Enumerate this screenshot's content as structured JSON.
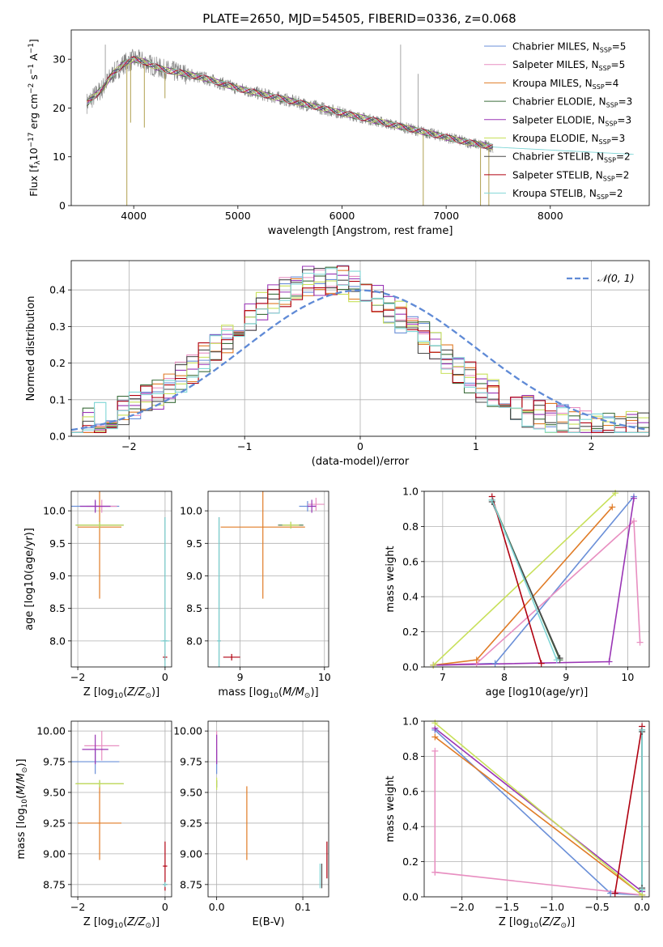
{
  "figure_title": "PLATE=2650, MJD=54505, FIBERID=0336, z=0.068",
  "colors": {
    "Chabrier MILES": "#6a8fd8",
    "Salpeter MILES": "#e88fc1",
    "Kroupa MILES": "#e07b26",
    "Chabrier ELODIE": "#3c6e3c",
    "Salpeter ELODIE": "#9a35b5",
    "Kroupa ELODIE": "#c8e05a",
    "Chabrier STELIB": "#4a4a4a",
    "Salpeter STELIB": "#b00010",
    "Kroupa STELIB": "#7fd6d6"
  },
  "chart_data": [
    {
      "id": "spectrum",
      "type": "line",
      "title": "PLATE=2650, MJD=54505, FIBERID=0336, z=0.068",
      "xlabel": "wavelength [Angstrom, rest frame]",
      "ylabel_parts": [
        "Flux [f",
        "λ",
        "10",
        "−17",
        " erg cm",
        "−2",
        " s",
        "−1",
        " A",
        "−1",
        "]"
      ],
      "xlim": [
        3400,
        8950
      ],
      "ylim": [
        0,
        36
      ],
      "xticks": [
        4000,
        5000,
        6000,
        7000,
        8000
      ],
      "yticks": [
        0,
        10,
        20,
        30
      ],
      "grid": false,
      "legend_position": "top-right",
      "legend": [
        {
          "model": "Chabrier MILES",
          "label": "Chabrier MILES, N",
          "sub": "SSP",
          "tail": "=5"
        },
        {
          "model": "Salpeter MILES",
          "label": "Salpeter MILES, N",
          "sub": "SSP",
          "tail": "=5"
        },
        {
          "model": "Kroupa MILES",
          "label": "Kroupa MILES, N",
          "sub": "SSP",
          "tail": "=4"
        },
        {
          "model": "Chabrier ELODIE",
          "label": "Chabrier ELODIE, N",
          "sub": "SSP",
          "tail": "=3"
        },
        {
          "model": "Salpeter ELODIE",
          "label": "Salpeter ELODIE, N",
          "sub": "SSP",
          "tail": "=3"
        },
        {
          "model": "Kroupa ELODIE",
          "label": "Kroupa ELODIE, N",
          "sub": "SSP",
          "tail": "=3"
        },
        {
          "model": "Chabrier STELIB",
          "label": "Chabrier STELIB, N",
          "sub": "SSP",
          "tail": "=2"
        },
        {
          "model": "Salpeter STELIB",
          "label": "Salpeter STELIB, N",
          "sub": "SSP",
          "tail": "=2"
        },
        {
          "model": "Kroupa STELIB",
          "label": "Kroupa STELIB, N",
          "sub": "SSP",
          "tail": "=2"
        }
      ],
      "continuum": {
        "x": [
          3550,
          3700,
          3800,
          3900,
          4000,
          4100,
          4200,
          4300,
          4500,
          4700,
          5000,
          5300,
          5600,
          6000,
          6300,
          6600,
          6800,
          7000,
          7200,
          7450
        ],
        "y": [
          21,
          24,
          27,
          29,
          30,
          29.5,
          28.5,
          27.8,
          27,
          26,
          24,
          22.5,
          21,
          19,
          17.5,
          16,
          15,
          14,
          13,
          12
        ]
      },
      "absorption_features": [
        {
          "x": 3934,
          "y": 0
        },
        {
          "x": 3970,
          "y": 17
        },
        {
          "x": 4102,
          "y": 16
        },
        {
          "x": 4300,
          "y": 22
        },
        {
          "x": 6780,
          "y": 0
        },
        {
          "x": 7330,
          "y": 0
        },
        {
          "x": 7410,
          "y": 0
        }
      ],
      "emission_features": [
        {
          "x": 6563,
          "y": 33
        },
        {
          "x": 6730,
          "y": 27
        },
        {
          "x": 3727,
          "y": 33
        }
      ]
    },
    {
      "id": "residuals",
      "type": "line",
      "xlabel": "(data-model)/error",
      "ylabel": "Normed distribution",
      "xlim": [
        -2.5,
        2.5
      ],
      "ylim": [
        0,
        0.48
      ],
      "xticks": [
        -2,
        -1,
        0,
        1,
        2
      ],
      "yticks": [
        0.0,
        0.1,
        0.2,
        0.3,
        0.4
      ],
      "grid": true,
      "legend_position": "top-right",
      "legend_label": "𝒩(0, 1)",
      "normal_curve": {
        "mu": 0,
        "sigma": 1,
        "color": "#5f8ad6"
      },
      "hist_bins": 50,
      "peak_offset": -0.3,
      "peak_height": 0.41
    },
    {
      "id": "age_vs_Z",
      "type": "scatter",
      "xlabel_parts": [
        "Z [log",
        "10",
        "(",
        "Z/Z",
        "⊙",
        ")]"
      ],
      "ylabel_parts": [
        "age  [log",
        "10",
        "(",
        "age/yr",
        ")]"
      ],
      "xlim": [
        -2.15,
        0.15
      ],
      "ylim": [
        7.6,
        10.3
      ],
      "xticks": [
        -2,
        0
      ],
      "yticks": [
        8.0,
        8.5,
        9.0,
        9.5,
        10.0
      ],
      "grid": true,
      "points": [
        {
          "model": "Chabrier MILES",
          "x": -1.6,
          "y": 10.07,
          "xerr": 0.55,
          "yerr": 0.08
        },
        {
          "model": "Salpeter MILES",
          "x": -1.45,
          "y": 10.07,
          "xerr": 0.35,
          "yerr": 0.1
        },
        {
          "model": "Kroupa MILES",
          "x": -1.5,
          "y": 9.75,
          "xerr": 0.5,
          "yerr": 1.1
        },
        {
          "model": "Chabrier ELODIE",
          "x": -1.5,
          "y": 9.78,
          "xerr": 0.55,
          "yerr": 0.05
        },
        {
          "model": "Salpeter ELODIE",
          "x": -1.6,
          "y": 10.07,
          "xerr": 0.35,
          "yerr": 0.1
        },
        {
          "model": "Kroupa ELODIE",
          "x": -1.5,
          "y": 9.78,
          "xerr": 0.55,
          "yerr": 0.05
        },
        {
          "model": "Chabrier STELIB",
          "x": 0.0,
          "y": 8.0,
          "xerr": 0.05,
          "yerr": 1.9
        },
        {
          "model": "Salpeter STELIB",
          "x": 0.0,
          "y": 7.75,
          "xerr": 0.05,
          "yerr": 0.05
        },
        {
          "model": "Kroupa STELIB",
          "x": 0.0,
          "y": 8.0,
          "xerr": 0.1,
          "yerr": 1.9
        }
      ]
    },
    {
      "id": "age_vs_mass",
      "type": "scatter",
      "xlabel_parts": [
        "mass [log",
        "10",
        "(",
        "M/M",
        "⊙",
        ")]"
      ],
      "xlim": [
        8.62,
        10.05
      ],
      "ylim": [
        7.6,
        10.3
      ],
      "xticks": [
        9,
        10
      ],
      "yticks": [
        8.0,
        8.5,
        9.0,
        9.5,
        10.0
      ],
      "grid": true,
      "points": [
        {
          "model": "Chabrier MILES",
          "x": 9.8,
          "y": 10.07,
          "xerr": 0.1,
          "yerr": 0.08
        },
        {
          "model": "Salpeter MILES",
          "x": 9.9,
          "y": 10.1,
          "xerr": 0.1,
          "yerr": 0.1
        },
        {
          "model": "Kroupa MILES",
          "x": 9.27,
          "y": 9.75,
          "xerr": 0.5,
          "yerr": 1.1
        },
        {
          "model": "Chabrier ELODIE",
          "x": 9.6,
          "y": 9.78,
          "xerr": 0.15,
          "yerr": 0.05
        },
        {
          "model": "Salpeter ELODIE",
          "x": 9.85,
          "y": 10.07,
          "xerr": 0.05,
          "yerr": 0.1
        },
        {
          "model": "Kroupa ELODIE",
          "x": 9.6,
          "y": 9.78,
          "xerr": 0.1,
          "yerr": 0.05
        },
        {
          "model": "Chabrier STELIB",
          "x": 8.75,
          "y": 8.0,
          "xerr": 0.02,
          "yerr": 1.9
        },
        {
          "model": "Salpeter STELIB",
          "x": 8.9,
          "y": 7.75,
          "xerr": 0.1,
          "yerr": 0.05
        },
        {
          "model": "Kroupa STELIB",
          "x": 8.75,
          "y": 8.0,
          "xerr": 0.02,
          "yerr": 1.9
        }
      ]
    },
    {
      "id": "weight_vs_age",
      "type": "line",
      "xlabel_parts": [
        "age  [log",
        "10",
        "(",
        "age/yr",
        ")]"
      ],
      "ylabel": "mass weight",
      "xlim": [
        6.7,
        10.35
      ],
      "ylim": [
        0,
        1.0
      ],
      "xticks": [
        7,
        8,
        9,
        10
      ],
      "yticks": [
        0.0,
        0.2,
        0.4,
        0.6,
        0.8,
        1.0
      ],
      "grid": true,
      "series": [
        {
          "model": "Chabrier MILES",
          "x": [
            6.85,
            7.85,
            10.1
          ],
          "y": [
            0.01,
            0.02,
            0.97
          ]
        },
        {
          "model": "Salpeter MILES",
          "x": [
            6.85,
            7.55,
            10.1,
            10.2
          ],
          "y": [
            0.01,
            0.02,
            0.83,
            0.14
          ]
        },
        {
          "model": "Kroupa MILES",
          "x": [
            6.85,
            7.55,
            9.75
          ],
          "y": [
            0.01,
            0.04,
            0.91
          ]
        },
        {
          "model": "Chabrier ELODIE",
          "x": [
            7.8,
            8.9
          ],
          "y": [
            0.95,
            0.04
          ]
        },
        {
          "model": "Salpeter ELODIE",
          "x": [
            6.85,
            9.7,
            10.1
          ],
          "y": [
            0.01,
            0.03,
            0.96
          ]
        },
        {
          "model": "Kroupa ELODIE",
          "x": [
            6.85,
            9.8
          ],
          "y": [
            0.01,
            0.99
          ]
        },
        {
          "model": "Chabrier STELIB",
          "x": [
            7.8,
            8.9
          ],
          "y": [
            0.94,
            0.05
          ]
        },
        {
          "model": "Salpeter STELIB",
          "x": [
            7.8,
            8.6
          ],
          "y": [
            0.97,
            0.02
          ]
        },
        {
          "model": "Kroupa STELIB",
          "x": [
            7.8,
            8.85
          ],
          "y": [
            0.95,
            0.04
          ]
        }
      ]
    },
    {
      "id": "mass_vs_Z",
      "type": "scatter",
      "xlabel_parts": [
        "Z [log",
        "10",
        "(",
        "Z/Z",
        "⊙",
        ")]"
      ],
      "ylabel_parts": [
        "mass [log",
        "10",
        "(",
        "M/M",
        "⊙",
        ")]"
      ],
      "xlim": [
        -2.15,
        0.15
      ],
      "ylim": [
        8.65,
        10.08
      ],
      "xticks": [
        -2,
        0
      ],
      "yticks": [
        8.75,
        9.0,
        9.25,
        9.5,
        9.75,
        10.0
      ],
      "grid": true,
      "points": [
        {
          "model": "Chabrier MILES",
          "x": -1.6,
          "y": 9.75,
          "xerr": 0.55,
          "yerr": 0.1
        },
        {
          "model": "Salpeter MILES",
          "x": -1.45,
          "y": 9.88,
          "xerr": 0.4,
          "yerr": 0.12
        },
        {
          "model": "Kroupa MILES",
          "x": -1.5,
          "y": 9.25,
          "xerr": 0.5,
          "yerr": 0.3
        },
        {
          "model": "Chabrier ELODIE",
          "x": -1.5,
          "y": 9.57,
          "xerr": 0.55,
          "yerr": 0.03
        },
        {
          "model": "Salpeter ELODIE",
          "x": -1.6,
          "y": 9.85,
          "xerr": 0.3,
          "yerr": 0.12
        },
        {
          "model": "Kroupa ELODIE",
          "x": -1.5,
          "y": 9.57,
          "xerr": 0.55,
          "yerr": 0.03
        },
        {
          "model": "Chabrier STELIB",
          "x": 0.0,
          "y": 8.75,
          "xerr": 0.05,
          "yerr": 0.02
        },
        {
          "model": "Salpeter STELIB",
          "x": 0.0,
          "y": 8.9,
          "xerr": 0.05,
          "yerr": 0.2
        },
        {
          "model": "Kroupa STELIB",
          "x": 0.0,
          "y": 8.75,
          "xerr": 0.05,
          "yerr": 0.02
        }
      ]
    },
    {
      "id": "mass_vs_EBV",
      "type": "scatter",
      "xlabel": "E(B-V)",
      "xlim": [
        -0.01,
        0.13
      ],
      "ylim": [
        8.65,
        10.08
      ],
      "xticks": [
        0.0,
        0.1
      ],
      "yticks": [
        8.75,
        9.0,
        9.25,
        9.5,
        9.75,
        10.0
      ],
      "grid": true,
      "points": [
        {
          "model": "Chabrier MILES",
          "x": 0.0,
          "y": 9.75,
          "xerr": 0.0,
          "yerr": 0.1
        },
        {
          "model": "Salpeter MILES",
          "x": 0.0,
          "y": 9.88,
          "xerr": 0.0,
          "yerr": 0.12
        },
        {
          "model": "Kroupa MILES",
          "x": 0.035,
          "y": 9.25,
          "xerr": 0.0,
          "yerr": 0.3
        },
        {
          "model": "Chabrier ELODIE",
          "x": 0.0,
          "y": 9.57,
          "xerr": 0.0,
          "yerr": 0.03
        },
        {
          "model": "Salpeter ELODIE",
          "x": 0.0,
          "y": 9.85,
          "xerr": 0.0,
          "yerr": 0.12
        },
        {
          "model": "Kroupa ELODIE",
          "x": 0.0,
          "y": 9.57,
          "xerr": 0.0,
          "yerr": 0.05
        },
        {
          "model": "Chabrier STELIB",
          "x": 0.122,
          "y": 8.82,
          "xerr": 0.0,
          "yerr": 0.1
        },
        {
          "model": "Salpeter STELIB",
          "x": 0.128,
          "y": 8.95,
          "xerr": 0.0,
          "yerr": 0.15
        },
        {
          "model": "Kroupa STELIB",
          "x": 0.12,
          "y": 8.82,
          "xerr": 0.0,
          "yerr": 0.1
        }
      ]
    },
    {
      "id": "weight_vs_Z",
      "type": "line",
      "xlabel_parts": [
        "Z [log",
        "10",
        "(",
        "Z/Z",
        "⊙",
        ")]"
      ],
      "ylabel": "mass weight",
      "xlim": [
        -2.42,
        0.08
      ],
      "ylim": [
        0,
        1.0
      ],
      "xticks": [
        -2.0,
        -1.5,
        -1.0,
        -0.5,
        0.0
      ],
      "yticks": [
        0.0,
        0.2,
        0.4,
        0.6,
        0.8,
        1.0
      ],
      "grid": true,
      "series": [
        {
          "model": "Chabrier MILES",
          "x": [
            -2.3,
            -0.35,
            0.0
          ],
          "y": [
            0.95,
            0.02,
            0.01
          ]
        },
        {
          "model": "Salpeter MILES",
          "x": [
            -2.3,
            -2.3,
            -2.3,
            0.0
          ],
          "y": [
            0.83,
            0.14,
            0.14,
            0.01
          ]
        },
        {
          "model": "Kroupa MILES",
          "x": [
            -2.3,
            0.0
          ],
          "y": [
            0.91,
            0.01
          ]
        },
        {
          "model": "Chabrier ELODIE",
          "x": [
            0.0,
            0.0
          ],
          "y": [
            0.95,
            0.04
          ]
        },
        {
          "model": "Salpeter ELODIE",
          "x": [
            -2.3,
            0.0
          ],
          "y": [
            0.96,
            0.03
          ]
        },
        {
          "model": "Kroupa ELODIE",
          "x": [
            -2.3,
            0.0
          ],
          "y": [
            0.99,
            0.01
          ]
        },
        {
          "model": "Chabrier STELIB",
          "x": [
            0.0,
            0.0
          ],
          "y": [
            0.94,
            0.05
          ]
        },
        {
          "model": "Salpeter STELIB",
          "x": [
            -0.3,
            0.0
          ],
          "y": [
            0.02,
            0.97
          ]
        },
        {
          "model": "Kroupa STELIB",
          "x": [
            0.0,
            0.0
          ],
          "y": [
            0.95,
            0.04
          ]
        }
      ]
    }
  ]
}
